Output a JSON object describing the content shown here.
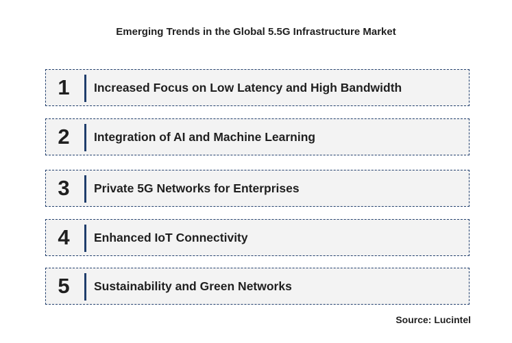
{
  "title": "Emerging Trends in the Global 5.5G Infrastructure Market",
  "trends": [
    {
      "number": "1",
      "label": "Increased Focus on Low Latency and High Bandwidth"
    },
    {
      "number": "2",
      "label": "Integration of AI and Machine Learning"
    },
    {
      "number": "3",
      "label": "Private 5G Networks for Enterprises"
    },
    {
      "number": "4",
      "label": "Enhanced IoT Connectivity"
    },
    {
      "number": "5",
      "label": "Sustainability and Green Networks"
    }
  ],
  "source": "Source: Lucintel",
  "colors": {
    "border": "#1f3d6b",
    "box_fill": "#f3f3f3",
    "text": "#1f1f1f"
  }
}
